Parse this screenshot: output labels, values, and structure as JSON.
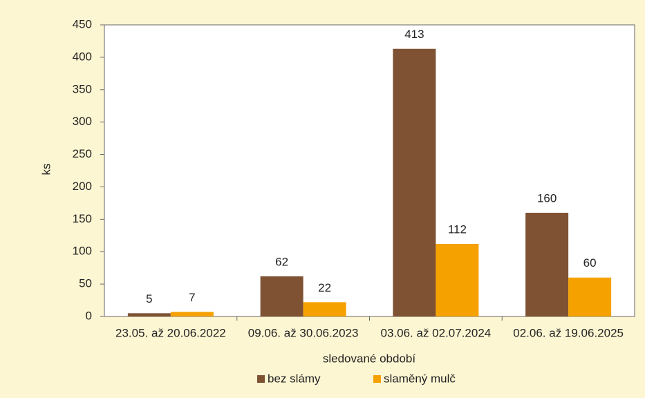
{
  "chart_data": {
    "type": "bar",
    "categories": [
      "23.05. až 20.06.2022",
      "09.06. až 30.06.2023",
      "03.06. až 02.07.2024",
      "02.06. až 19.06.2025"
    ],
    "series": [
      {
        "name": "bez slámy",
        "color": "#7f5233",
        "values": [
          5,
          62,
          413,
          160
        ]
      },
      {
        "name": "slaměný mulč",
        "color": "#f5a100",
        "values": [
          7,
          22,
          112,
          60
        ]
      }
    ],
    "xlabel": "sledované období",
    "ylabel": "ks",
    "ylim": [
      0,
      450
    ],
    "yticks": [
      0,
      50,
      100,
      150,
      200,
      250,
      300,
      350,
      400,
      450
    ],
    "grid": false,
    "legend": "bottom"
  }
}
